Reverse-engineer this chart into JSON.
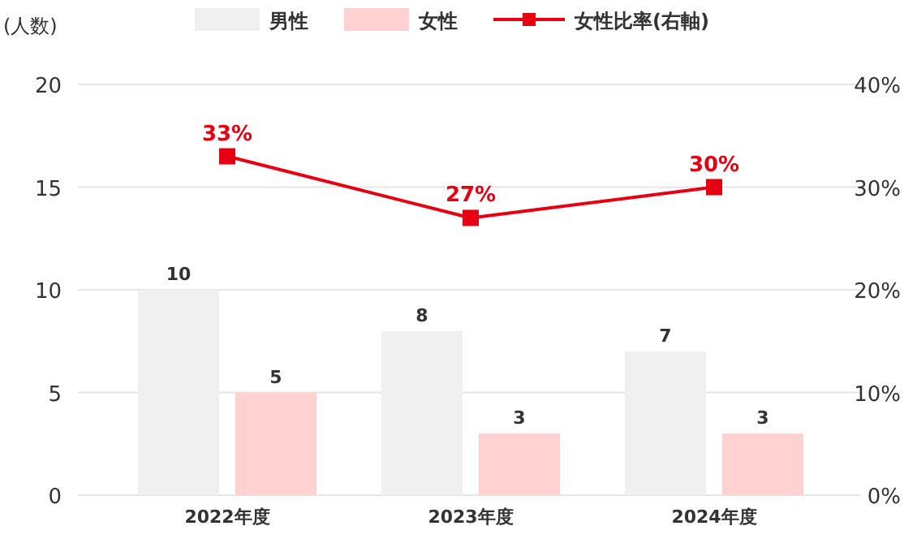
{
  "chart_data": {
    "type": "bar",
    "ylabel": "(人数)",
    "categories": [
      "2022年度",
      "2023年度",
      "2024年度"
    ],
    "series": [
      {
        "name": "男性",
        "color": "#f0f0f0",
        "values": [
          10,
          8,
          7
        ]
      },
      {
        "name": "女性",
        "color": "#ffd1d1",
        "values": [
          5,
          3,
          3
        ]
      },
      {
        "name": "女性比率(右軸)",
        "type": "line",
        "axis": "y2",
        "color": "#e60012",
        "values": [
          33,
          27,
          30
        ],
        "value_labels": [
          "33%",
          "27%",
          "30%"
        ]
      }
    ],
    "ylim": [
      0,
      20
    ],
    "yticks": [
      0,
      5,
      10,
      15,
      20
    ],
    "y2lim": [
      0,
      40
    ],
    "y2ticks": [
      {
        "value": 0,
        "label": "0%"
      },
      {
        "value": 10,
        "label": "10%"
      },
      {
        "value": 20,
        "label": "20%"
      },
      {
        "value": 30,
        "label": "30%"
      },
      {
        "value": 40,
        "label": "40%"
      }
    ],
    "data_labels": true,
    "grid": "y",
    "legend": "top",
    "marker": "square"
  }
}
